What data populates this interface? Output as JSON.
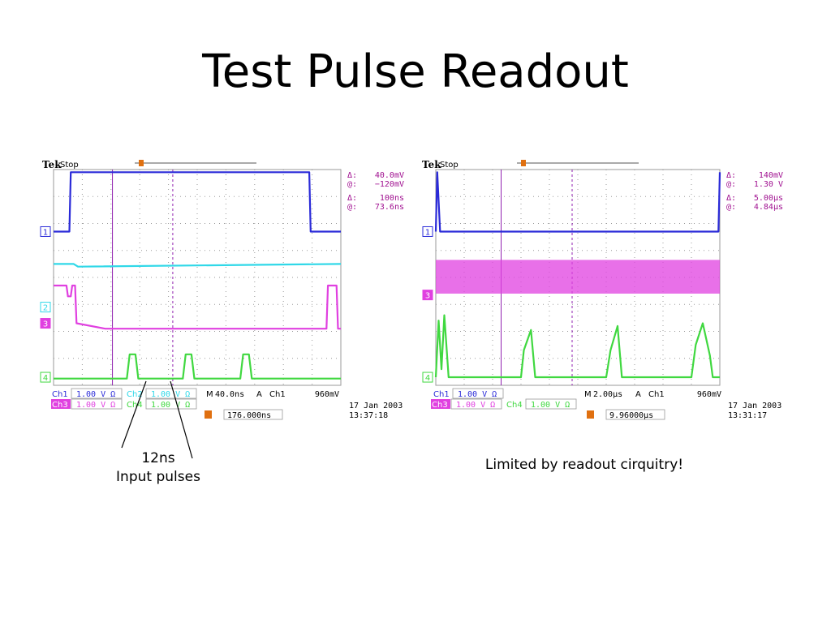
{
  "slide": {
    "title": "Test Pulse Readout",
    "note_left": [
      "12ns",
      "Input pulses"
    ],
    "note_right": "Limited by readout cirquitry!"
  },
  "colors": {
    "ch1": "#2a2ad8",
    "ch2": "#30d8e8",
    "ch3": "#e040e0",
    "ch4": "#40d840",
    "grid": "#9a9a9a",
    "cursor": "#9020b0",
    "trigger": "#e07010",
    "readout": "#a01090"
  },
  "chart_data": [
    {
      "type": "line",
      "id": "scope-left",
      "brand": "Tek",
      "status": "Stop",
      "cursor_readout": [
        {
          "symbol": "Δ:",
          "value": "40.0mV"
        },
        {
          "symbol": "@:",
          "value": "−120mV"
        },
        {
          "symbol": "Δ:",
          "value": "100ns"
        },
        {
          "symbol": "@:",
          "value": "73.6ns"
        }
      ],
      "footer": {
        "row1": [
          {
            "label": "Ch1",
            "value": "1.00 V Ω",
            "channel": "ch1"
          },
          {
            "label": "Ch2",
            "value": "1.00 V Ω",
            "channel": "ch2"
          },
          {
            "label": "M",
            "value": "40.0ns"
          },
          {
            "label": "A",
            "value": "Ch1"
          },
          {
            "label": "",
            "value": "960mV"
          }
        ],
        "row2": [
          {
            "label": "Ch3",
            "value": "1.00 V Ω",
            "channel": "ch3"
          },
          {
            "label": "Ch4",
            "value": "1.00 V Ω",
            "channel": "ch4"
          }
        ],
        "trigger_position": "176.000ns",
        "date": "17 Jan  2003",
        "time": "13:37:18"
      },
      "channel_markers": [
        "1",
        "2",
        "3",
        "4"
      ],
      "x_divisions": 10,
      "y_divisions": 8,
      "series": [
        {
          "channel": "ch1",
          "points": [
            [
              0,
              5.7
            ],
            [
              0.55,
              5.7
            ],
            [
              0.6,
              7.9
            ],
            [
              8.9,
              7.9
            ],
            [
              8.95,
              5.7
            ],
            [
              10,
              5.7
            ]
          ]
        },
        {
          "channel": "ch2",
          "points": [
            [
              0,
              4.5
            ],
            [
              0.7,
              4.5
            ],
            [
              0.85,
              4.4
            ],
            [
              10,
              4.5
            ]
          ]
        },
        {
          "channel": "ch3",
          "points": [
            [
              0,
              3.7
            ],
            [
              0.45,
              3.7
            ],
            [
              0.5,
              3.3
            ],
            [
              0.6,
              3.3
            ],
            [
              0.65,
              3.7
            ],
            [
              0.75,
              3.7
            ],
            [
              0.8,
              2.3
            ],
            [
              1.8,
              2.1
            ],
            [
              9.5,
              2.1
            ],
            [
              9.55,
              3.7
            ],
            [
              9.85,
              3.7
            ],
            [
              9.9,
              2.1
            ],
            [
              10,
              2.1
            ]
          ]
        },
        {
          "channel": "ch4",
          "points": [
            [
              0,
              0.25
            ],
            [
              2.55,
              0.25
            ],
            [
              2.65,
              1.15
            ],
            [
              2.85,
              1.15
            ],
            [
              2.95,
              0.25
            ],
            [
              4.5,
              0.25
            ],
            [
              4.6,
              1.15
            ],
            [
              4.8,
              1.15
            ],
            [
              4.9,
              0.25
            ],
            [
              6.5,
              0.25
            ],
            [
              6.6,
              1.15
            ],
            [
              6.8,
              1.15
            ],
            [
              6.9,
              0.25
            ],
            [
              10,
              0.25
            ]
          ]
        }
      ],
      "cursors_x": [
        2.05,
        4.15
      ]
    },
    {
      "type": "line",
      "id": "scope-right",
      "brand": "Tek",
      "status": "Stop",
      "cursor_readout": [
        {
          "symbol": "Δ:",
          "value": "140mV"
        },
        {
          "symbol": "@:",
          "value": "1.30 V"
        },
        {
          "symbol": "Δ:",
          "value": "5.00µs"
        },
        {
          "symbol": "@:",
          "value": "4.84µs"
        }
      ],
      "footer": {
        "row1": [
          {
            "label": "Ch1",
            "value": "1.00 V Ω",
            "channel": "ch1"
          },
          {
            "label": "M",
            "value": "2.00µs"
          },
          {
            "label": "A",
            "value": "Ch1"
          },
          {
            "label": "",
            "value": "960mV"
          }
        ],
        "row2": [
          {
            "label": "Ch3",
            "value": "1.00 V Ω",
            "channel": "ch3"
          },
          {
            "label": "Ch4",
            "value": "1.00 V Ω",
            "channel": "ch4"
          }
        ],
        "trigger_position": "9.96000µs",
        "date": "17 Jan  2003",
        "time": "13:31:17"
      },
      "channel_markers": [
        "1",
        "3",
        "4"
      ],
      "x_divisions": 10,
      "y_divisions": 8,
      "series": [
        {
          "channel": "ch1",
          "points": [
            [
              0,
              5.7
            ],
            [
              0.05,
              7.9
            ],
            [
              0.15,
              5.7
            ],
            [
              9.95,
              5.7
            ],
            [
              10,
              7.9
            ]
          ]
        },
        {
          "channel": "ch3",
          "band": [
            3.4,
            4.65
          ]
        },
        {
          "channel": "ch4",
          "points": [
            [
              0,
              0.3
            ],
            [
              0.1,
              2.4
            ],
            [
              0.2,
              0.6
            ],
            [
              0.3,
              2.6
            ],
            [
              0.45,
              0.3
            ],
            [
              3.0,
              0.3
            ],
            [
              3.1,
              1.3
            ],
            [
              3.35,
              2.05
            ],
            [
              3.5,
              0.3
            ],
            [
              6.0,
              0.3
            ],
            [
              6.15,
              1.3
            ],
            [
              6.4,
              2.2
            ],
            [
              6.55,
              0.3
            ],
            [
              9.0,
              0.3
            ],
            [
              9.15,
              1.5
            ],
            [
              9.4,
              2.3
            ],
            [
              9.65,
              1.1
            ],
            [
              9.75,
              0.3
            ],
            [
              10,
              0.3
            ]
          ]
        }
      ],
      "cursors_x": [
        2.3,
        4.8
      ]
    }
  ]
}
